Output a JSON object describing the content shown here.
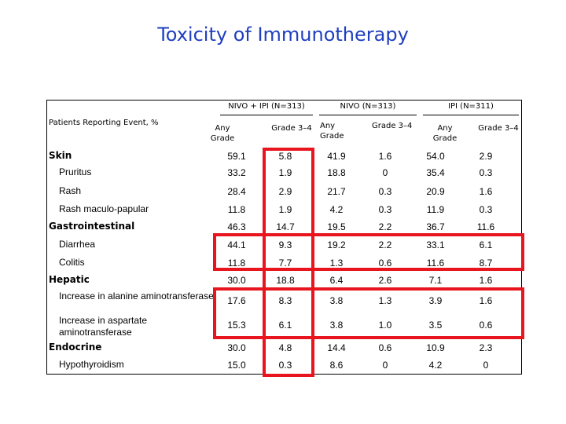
{
  "title": "Toxicity of Immunotherapy",
  "header": {
    "row_label_heading": "Patients Reporting Event, %",
    "groups": [
      "NIVO + IPI (N=313)",
      "NIVO (N=313)",
      "IPI (N=311)"
    ],
    "sub_any": "Any Grade",
    "sub_grade": "Grade 3–4"
  },
  "rows": [
    {
      "label": "Skin",
      "type": "cat",
      "values": [
        "59.1",
        "5.8",
        "41.9",
        "1.6",
        "54.0",
        "2.9"
      ]
    },
    {
      "label": "Pruritus",
      "type": "sub",
      "values": [
        "33.2",
        "1.9",
        "18.8",
        "0",
        "35.4",
        "0.3"
      ]
    },
    {
      "label": "Rash",
      "type": "sub",
      "values": [
        "28.4",
        "2.9",
        "21.7",
        "0.3",
        "20.9",
        "1.6"
      ]
    },
    {
      "label": "Rash maculo-papular",
      "type": "sub",
      "values": [
        "11.8",
        "1.9",
        "4.2",
        "0.3",
        "11.9",
        "0.3"
      ]
    },
    {
      "label": "Gastrointestinal",
      "type": "cat",
      "values": [
        "46.3",
        "14.7",
        "19.5",
        "2.2",
        "36.7",
        "11.6"
      ]
    },
    {
      "label": "Diarrhea",
      "type": "sub",
      "values": [
        "44.1",
        "9.3",
        "19.2",
        "2.2",
        "33.1",
        "6.1"
      ]
    },
    {
      "label": "Colitis",
      "type": "sub",
      "values": [
        "11.8",
        "7.7",
        "1.3",
        "0.6",
        "11.6",
        "8.7"
      ]
    },
    {
      "label": "Hepatic",
      "type": "cat",
      "values": [
        "30.0",
        "18.8",
        "6.4",
        "2.6",
        "7.1",
        "1.6"
      ]
    },
    {
      "label": "Increase in alanine aminotransferase",
      "type": "sub2",
      "values": [
        "17.6",
        "8.3",
        "3.8",
        "1.3",
        "3.9",
        "1.6"
      ]
    },
    {
      "label": "Increase in aspartate aminotransferase",
      "type": "sub2",
      "values": [
        "15.3",
        "6.1",
        "3.8",
        "1.0",
        "3.5",
        "0.6"
      ]
    },
    {
      "label": "Endocrine",
      "type": "cat",
      "values": [
        "30.0",
        "4.8",
        "14.4",
        "0.6",
        "10.9",
        "2.3"
      ]
    },
    {
      "label": "Hypothyroidism",
      "type": "sub",
      "values": [
        "15.0",
        "0.3",
        "8.6",
        "0",
        "4.2",
        "0"
      ]
    }
  ],
  "colors": {
    "title": "#1f3fbf",
    "highlight": "#e8141e"
  }
}
